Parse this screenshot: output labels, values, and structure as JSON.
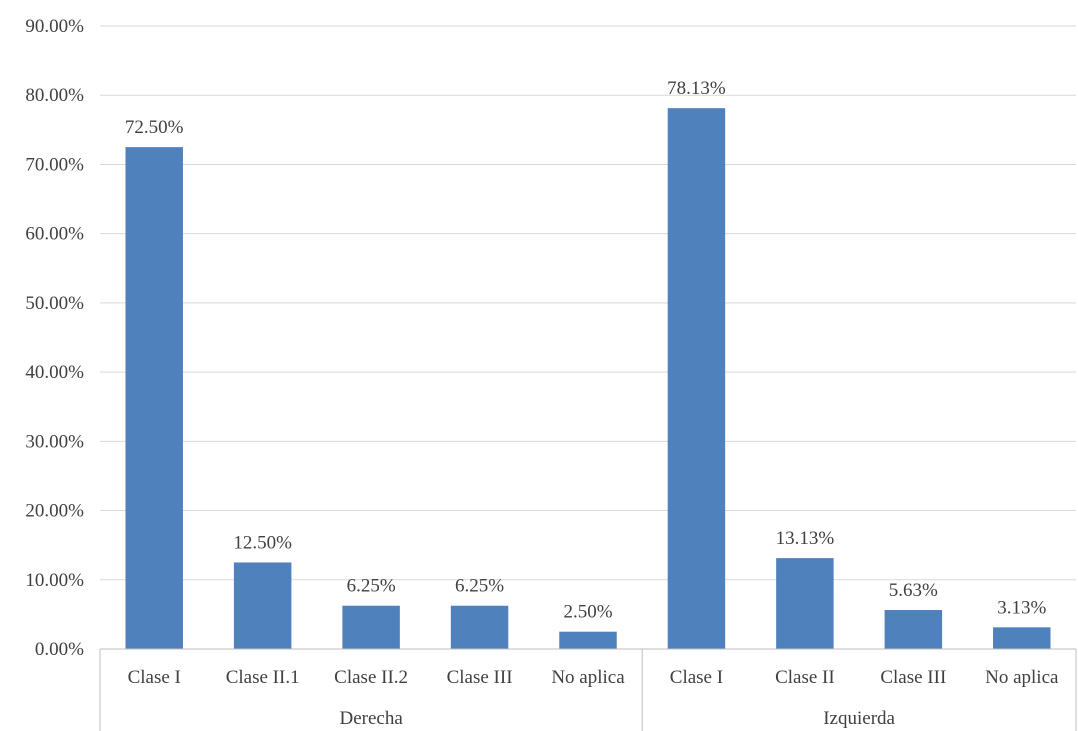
{
  "chart_data": {
    "type": "bar",
    "ylim": [
      0,
      90
    ],
    "yticks": [
      "0.00%",
      "10.00%",
      "20.00%",
      "30.00%",
      "40.00%",
      "50.00%",
      "60.00%",
      "70.00%",
      "80.00%",
      "90.00%"
    ],
    "grid": true,
    "groups": [
      {
        "label": "Derecha",
        "categories": [
          "Clase I",
          "Clase II.1",
          "Clase II.2",
          "Clase III",
          "No aplica"
        ],
        "values": [
          72.5,
          12.5,
          6.25,
          6.25,
          2.5
        ],
        "data_labels": [
          "72.50%",
          "12.50%",
          "6.25%",
          "6.25%",
          "2.50%"
        ]
      },
      {
        "label": "Izquierda",
        "categories": [
          "Clase I",
          "Clase II",
          "Clase III",
          "No aplica"
        ],
        "values": [
          78.13,
          13.13,
          5.63,
          3.13
        ],
        "data_labels": [
          "78.13%",
          "13.13%",
          "5.63%",
          "3.13%"
        ]
      }
    ],
    "bar_color": "#4f81bd"
  }
}
